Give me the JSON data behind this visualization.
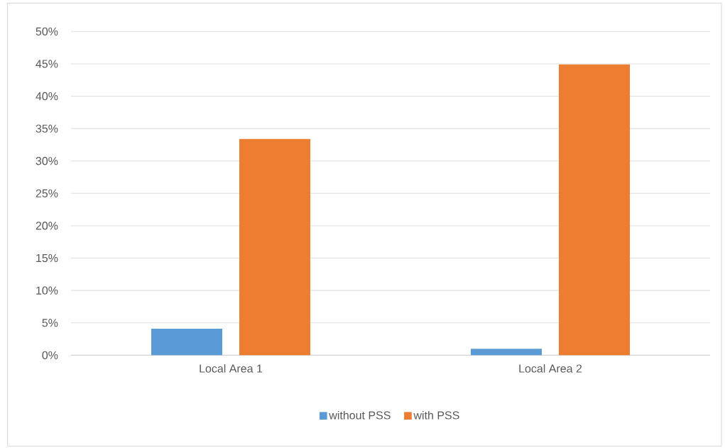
{
  "chart_data": {
    "type": "bar",
    "categories": [
      "Local Area 1",
      "Local Area 2"
    ],
    "series": [
      {
        "name": "without PSS",
        "color": "#5b9bd5",
        "values": [
          4.1,
          1.0
        ]
      },
      {
        "name": "with PSS",
        "color": "#ed7d31",
        "values": [
          33.4,
          44.9
        ]
      }
    ],
    "ylim": [
      0,
      50
    ],
    "yticks": [
      {
        "value": 0,
        "label": "0%"
      },
      {
        "value": 5,
        "label": "5%"
      },
      {
        "value": 10,
        "label": "10%"
      },
      {
        "value": 15,
        "label": "15%"
      },
      {
        "value": 20,
        "label": "20%"
      },
      {
        "value": 25,
        "label": "25%"
      },
      {
        "value": 30,
        "label": "30%"
      },
      {
        "value": 35,
        "label": "35%"
      },
      {
        "value": 40,
        "label": "40%"
      },
      {
        "value": 45,
        "label": "45%"
      },
      {
        "value": 50,
        "label": "50%"
      }
    ],
    "grid": "y",
    "legend": "bottom"
  }
}
